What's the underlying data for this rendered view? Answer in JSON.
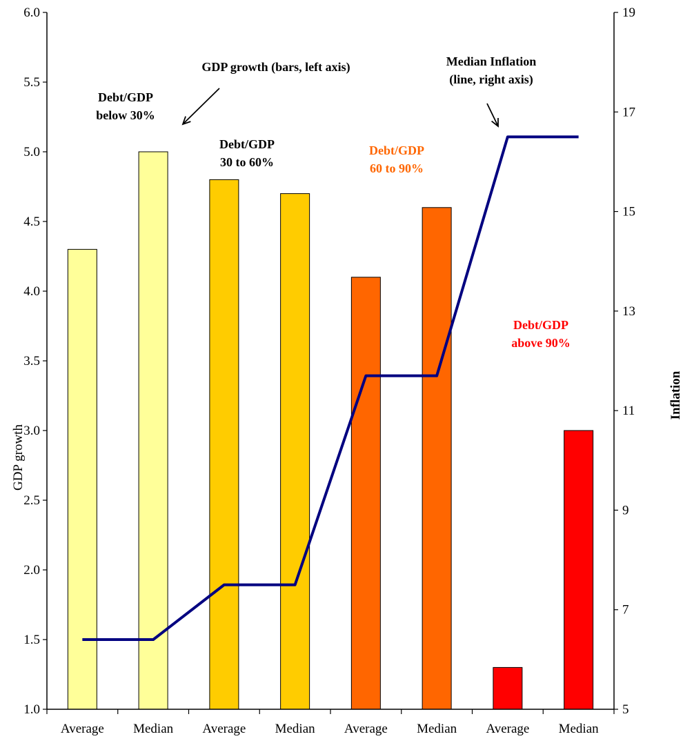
{
  "chart_data": {
    "type": "bar",
    "categories": [
      "Average",
      "Median",
      "Average",
      "Median",
      "Average",
      "Median",
      "Average",
      "Median"
    ],
    "series": [
      {
        "values": [
          4.3,
          5.0,
          4.8,
          4.7,
          4.1,
          4.6,
          1.3,
          3.0
        ],
        "colors": [
          "#ffff99",
          "#ffff99",
          "#ffcc00",
          "#ffcc00",
          "#ff6600",
          "#ff6600",
          "#ff0000",
          "#ff0000"
        ],
        "axis": "left"
      },
      {
        "type": "line",
        "values": [
          6.4,
          6.4,
          7.5,
          7.5,
          11.7,
          11.7,
          16.5,
          16.5
        ],
        "color": "#000080",
        "axis": "right"
      }
    ],
    "ylabel": "GDP growth",
    "ylabel_right": "Inflation",
    "ylim": [
      1.0,
      6.0
    ],
    "ylim_right": [
      5,
      19
    ],
    "yticks": [
      "1.0",
      "1.5",
      "2.0",
      "2.5",
      "3.0",
      "3.5",
      "4.0",
      "4.5",
      "5.0",
      "5.5",
      "6.0"
    ],
    "yticks_right": [
      "5",
      "7",
      "9",
      "11",
      "13",
      "15",
      "17",
      "19"
    ],
    "grid": false,
    "annotations": [
      {
        "lines": [
          "GDP growth (bars, left axis)"
        ],
        "color": "#000000"
      },
      {
        "lines": [
          "Median Inflation",
          "(line, right axis)"
        ],
        "color": "#000000"
      },
      {
        "lines": [
          "Debt/GDP",
          "below 30%"
        ],
        "color": "#000000"
      },
      {
        "lines": [
          "Debt/GDP",
          "30 to 60%"
        ],
        "color": "#000000"
      },
      {
        "lines": [
          "Debt/GDP",
          "60 to 90%"
        ],
        "color": "#ff6600"
      },
      {
        "lines": [
          "Debt/GDP",
          "above 90%"
        ],
        "color": "#ff0000"
      }
    ]
  }
}
